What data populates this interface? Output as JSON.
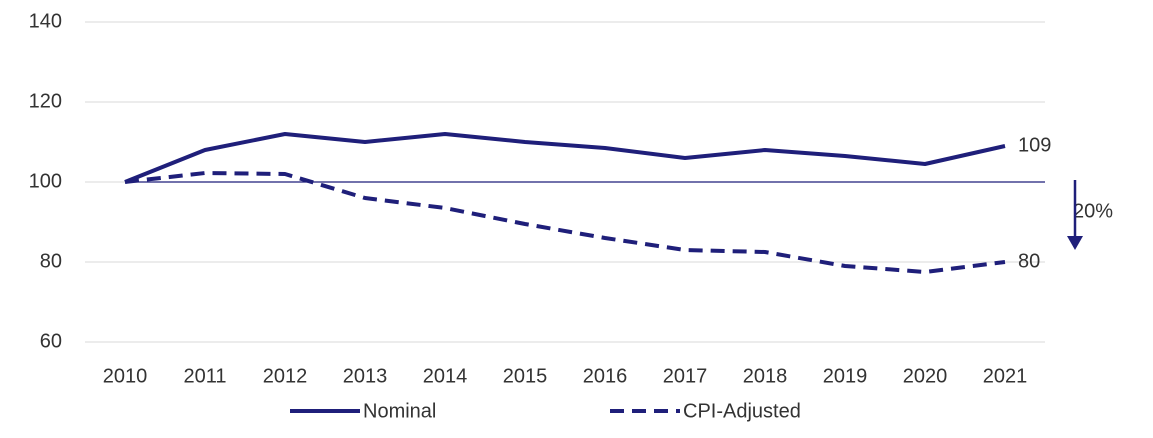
{
  "chart_data": {
    "type": "line",
    "categories": [
      "2010",
      "2011",
      "2012",
      "2013",
      "2014",
      "2015",
      "2016",
      "2017",
      "2018",
      "2019",
      "2020",
      "2021"
    ],
    "series": [
      {
        "name": "Nominal",
        "color": "#1f1f7a",
        "dash": false,
        "values": [
          100,
          108,
          112,
          110,
          112,
          110,
          108.5,
          106,
          108,
          106.5,
          104.5,
          109
        ]
      },
      {
        "name": "CPI-Adjusted",
        "color": "#1f1f7a",
        "dash": true,
        "values": [
          100,
          102.25,
          102,
          96,
          93.5,
          89.5,
          86,
          83,
          82.5,
          79,
          77.5,
          80
        ]
      }
    ],
    "ylim": [
      60,
      140
    ],
    "yticks": [
      60,
      80,
      100,
      120,
      140
    ],
    "grid": true,
    "reference_line": 100,
    "annotation": "20%",
    "legend": "bottom"
  }
}
